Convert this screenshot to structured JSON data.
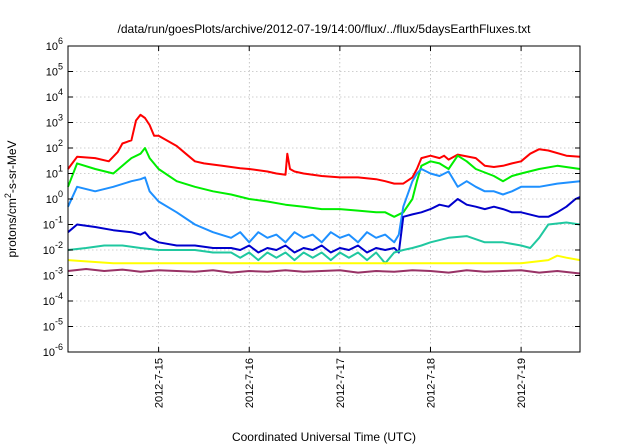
{
  "chart_data": {
    "type": "line",
    "title": "/data/run/goesPlots/archive/2012-07-19/14:00/flux/../flux/5daysEarthFluxes.txt",
    "xlabel": "Coordinated Universal Time (UTC)",
    "ylabel_parts": [
      "protons/cm",
      "2",
      "-s-sr-MeV"
    ],
    "yscale": "log",
    "ylim_exp": [
      -6,
      6
    ],
    "xlim": [
      14.0,
      19.65
    ],
    "x_unit": "day of July 2012",
    "x_ticks": [
      {
        "x": 15,
        "label": "2012-7-15"
      },
      {
        "x": 16,
        "label": "2012-7-16"
      },
      {
        "x": 17,
        "label": "2012-7-17"
      },
      {
        "x": 18,
        "label": "2012-7-18"
      },
      {
        "x": 19,
        "label": "2012-7-19"
      }
    ],
    "y_tick_exps": [
      -6,
      -5,
      -4,
      -3,
      -2,
      -1,
      0,
      1,
      2,
      3,
      4,
      5,
      6
    ],
    "y_tick_base": "10",
    "grid": true,
    "series": [
      {
        "color": "#ff0000",
        "x": [
          14.0,
          14.1,
          14.3,
          14.45,
          14.55,
          14.6,
          14.7,
          14.75,
          14.8,
          14.85,
          14.9,
          14.95,
          15.0,
          15.2,
          15.3,
          15.4,
          15.5,
          15.7,
          15.9,
          16.0,
          16.2,
          16.3,
          16.4,
          16.42,
          16.45,
          16.5,
          16.6,
          16.8,
          17.0,
          17.2,
          17.4,
          17.5,
          17.6,
          17.7,
          17.8,
          17.85,
          17.9,
          18.0,
          18.1,
          18.15,
          18.2,
          18.3,
          18.5,
          18.6,
          18.7,
          18.8,
          18.9,
          19.0,
          19.1,
          19.2,
          19.3,
          19.5,
          19.65
        ],
        "y": [
          15,
          45,
          40,
          30,
          70,
          150,
          200,
          1200,
          2000,
          1500,
          800,
          300,
          300,
          120,
          60,
          30,
          25,
          20,
          16,
          15,
          12,
          10,
          9,
          60,
          15,
          12,
          10,
          8,
          7,
          7,
          6,
          5,
          4,
          4,
          7,
          15,
          40,
          50,
          40,
          50,
          35,
          55,
          40,
          20,
          18,
          20,
          25,
          30,
          60,
          90,
          80,
          50,
          45
        ]
      },
      {
        "color": "#00ee00",
        "x": [
          14.0,
          14.1,
          14.3,
          14.5,
          14.7,
          14.8,
          14.85,
          14.9,
          15.0,
          15.2,
          15.4,
          15.6,
          15.8,
          16.0,
          16.2,
          16.4,
          16.6,
          16.8,
          17.0,
          17.2,
          17.4,
          17.5,
          17.6,
          17.7,
          17.8,
          17.85,
          17.9,
          18.0,
          18.1,
          18.2,
          18.3,
          18.4,
          18.5,
          18.7,
          18.8,
          18.9,
          19.0,
          19.2,
          19.4,
          19.65
        ],
        "y": [
          3,
          25,
          15,
          10,
          40,
          60,
          100,
          40,
          15,
          5,
          3,
          2,
          1.5,
          1,
          0.8,
          0.6,
          0.5,
          0.4,
          0.4,
          0.35,
          0.3,
          0.3,
          0.2,
          0.3,
          1,
          5,
          20,
          30,
          25,
          15,
          50,
          30,
          15,
          8,
          5,
          8,
          10,
          15,
          20,
          15
        ]
      },
      {
        "color": "#1e90ff",
        "x": [
          14.0,
          14.1,
          14.3,
          14.5,
          14.7,
          14.8,
          14.85,
          14.9,
          15.0,
          15.2,
          15.4,
          15.6,
          15.8,
          15.9,
          16.0,
          16.1,
          16.2,
          16.3,
          16.4,
          16.5,
          16.6,
          16.7,
          16.8,
          16.9,
          17.0,
          17.1,
          17.2,
          17.3,
          17.4,
          17.5,
          17.6,
          17.65,
          17.7,
          17.8,
          17.85,
          17.9,
          18.0,
          18.1,
          18.2,
          18.3,
          18.4,
          18.5,
          18.6,
          18.7,
          18.8,
          18.9,
          19.0,
          19.2,
          19.4,
          19.65
        ],
        "y": [
          0.5,
          3,
          2,
          3,
          5,
          6,
          7,
          2,
          0.8,
          0.3,
          0.1,
          0.05,
          0.03,
          0.05,
          0.02,
          0.05,
          0.03,
          0.04,
          0.02,
          0.05,
          0.03,
          0.04,
          0.02,
          0.05,
          0.03,
          0.04,
          0.02,
          0.05,
          0.03,
          0.04,
          0.02,
          0.04,
          0.5,
          5,
          10,
          15,
          10,
          8,
          12,
          3,
          5,
          3,
          2,
          2,
          1.5,
          2,
          3,
          3,
          4,
          5
        ]
      },
      {
        "color": "#0000cc",
        "x": [
          14.0,
          14.1,
          14.3,
          14.5,
          14.7,
          14.8,
          14.85,
          14.9,
          15.0,
          15.2,
          15.4,
          15.6,
          15.8,
          15.9,
          16.0,
          16.1,
          16.2,
          16.3,
          16.4,
          16.5,
          16.6,
          16.7,
          16.8,
          16.9,
          17.0,
          17.1,
          17.2,
          17.3,
          17.4,
          17.5,
          17.6,
          17.65,
          17.7,
          17.8,
          17.9,
          18.0,
          18.1,
          18.2,
          18.3,
          18.4,
          18.5,
          18.6,
          18.7,
          18.8,
          18.9,
          19.0,
          19.2,
          19.3,
          19.4,
          19.5,
          19.6,
          19.65
        ],
        "y": [
          0.05,
          0.1,
          0.08,
          0.06,
          0.05,
          0.04,
          0.05,
          0.03,
          0.02,
          0.015,
          0.015,
          0.012,
          0.012,
          0.01,
          0.015,
          0.008,
          0.012,
          0.01,
          0.015,
          0.008,
          0.012,
          0.01,
          0.015,
          0.008,
          0.012,
          0.01,
          0.015,
          0.008,
          0.012,
          0.01,
          0.012,
          0.008,
          0.2,
          0.25,
          0.3,
          0.4,
          0.6,
          0.5,
          1,
          0.6,
          0.5,
          0.4,
          0.5,
          0.4,
          0.3,
          0.3,
          0.2,
          0.2,
          0.3,
          0.5,
          1,
          1.2
        ]
      },
      {
        "color": "#20c8a0",
        "x": [
          14.0,
          14.2,
          14.4,
          14.6,
          14.8,
          15.0,
          15.2,
          15.4,
          15.6,
          15.8,
          15.9,
          16.0,
          16.1,
          16.2,
          16.3,
          16.4,
          16.5,
          16.6,
          16.7,
          16.8,
          16.9,
          17.0,
          17.1,
          17.2,
          17.3,
          17.4,
          17.5,
          17.6,
          17.7,
          17.8,
          17.9,
          18.0,
          18.2,
          18.4,
          18.6,
          18.8,
          19.0,
          19.1,
          19.2,
          19.3,
          19.5,
          19.65
        ],
        "y": [
          0.01,
          0.012,
          0.015,
          0.015,
          0.012,
          0.01,
          0.01,
          0.01,
          0.008,
          0.008,
          0.005,
          0.008,
          0.004,
          0.008,
          0.005,
          0.008,
          0.004,
          0.008,
          0.005,
          0.008,
          0.004,
          0.008,
          0.005,
          0.008,
          0.004,
          0.008,
          0.003,
          0.008,
          0.01,
          0.012,
          0.015,
          0.02,
          0.03,
          0.035,
          0.02,
          0.02,
          0.015,
          0.012,
          0.03,
          0.1,
          0.12,
          0.1
        ]
      },
      {
        "color": "#ffff00",
        "x": [
          14.0,
          14.5,
          15.0,
          15.5,
          16.0,
          16.5,
          17.0,
          17.5,
          18.0,
          18.5,
          19.0,
          19.3,
          19.4,
          19.5,
          19.65
        ],
        "y": [
          0.004,
          0.003,
          0.003,
          0.003,
          0.003,
          0.003,
          0.003,
          0.003,
          0.003,
          0.003,
          0.003,
          0.004,
          0.006,
          0.005,
          0.004
        ]
      },
      {
        "color": "#993366",
        "x": [
          14.0,
          14.2,
          14.4,
          14.6,
          14.8,
          15.0,
          15.2,
          15.4,
          15.6,
          15.8,
          16.0,
          16.2,
          16.4,
          16.6,
          16.8,
          17.0,
          17.2,
          17.4,
          17.6,
          17.8,
          18.0,
          18.2,
          18.4,
          18.6,
          18.8,
          19.0,
          19.2,
          19.4,
          19.65
        ],
        "y": [
          0.0015,
          0.0018,
          0.0015,
          0.0017,
          0.0014,
          0.0016,
          0.0015,
          0.0014,
          0.0016,
          0.0013,
          0.0015,
          0.0014,
          0.0016,
          0.0014,
          0.0015,
          0.0016,
          0.0013,
          0.0015,
          0.0014,
          0.0016,
          0.0015,
          0.0013,
          0.0016,
          0.0014,
          0.0015,
          0.0016,
          0.0013,
          0.0015,
          0.0012
        ]
      }
    ]
  }
}
